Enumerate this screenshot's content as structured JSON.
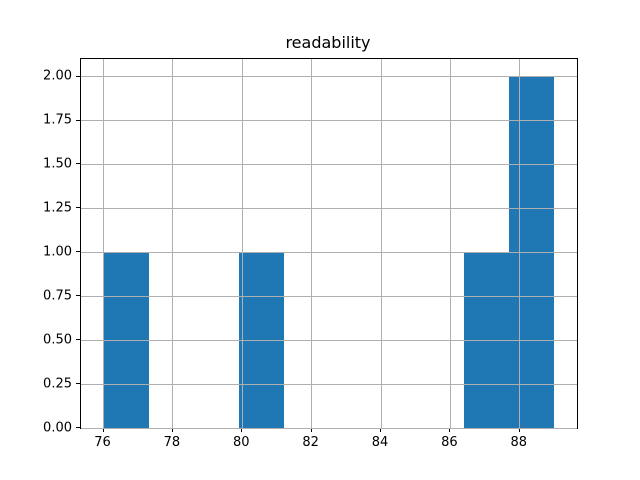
{
  "chart_data": {
    "type": "bar",
    "subtype": "histogram",
    "title": "readability",
    "xlabel": "",
    "ylabel": "",
    "bin_edges": [
      76.0,
      77.3,
      78.6,
      79.9,
      81.2,
      82.5,
      83.8,
      85.1,
      86.4,
      87.7,
      89.0
    ],
    "counts": [
      1,
      0,
      0,
      1,
      0,
      0,
      0,
      0,
      1,
      2
    ],
    "xlim": [
      75.35,
      89.65
    ],
    "ylim": [
      0,
      2.1
    ],
    "xtick_values": [
      76,
      78,
      80,
      82,
      84,
      86,
      88
    ],
    "xtick_labels": [
      "76",
      "78",
      "80",
      "82",
      "84",
      "86",
      "88"
    ],
    "ytick_values": [
      0,
      0.25,
      0.5,
      0.75,
      1.0,
      1.25,
      1.5,
      1.75,
      2.0
    ],
    "ytick_labels": [
      "0.00",
      "0.25",
      "0.50",
      "0.75",
      "1.00",
      "1.25",
      "1.50",
      "1.75",
      "2.00"
    ],
    "grid": true,
    "grid_above_bars": true,
    "legend_position": "none",
    "bar_color": "#1f77b4",
    "grid_color": "#b0b0b0",
    "spine_color": "#000000",
    "text_color": "#000000"
  }
}
